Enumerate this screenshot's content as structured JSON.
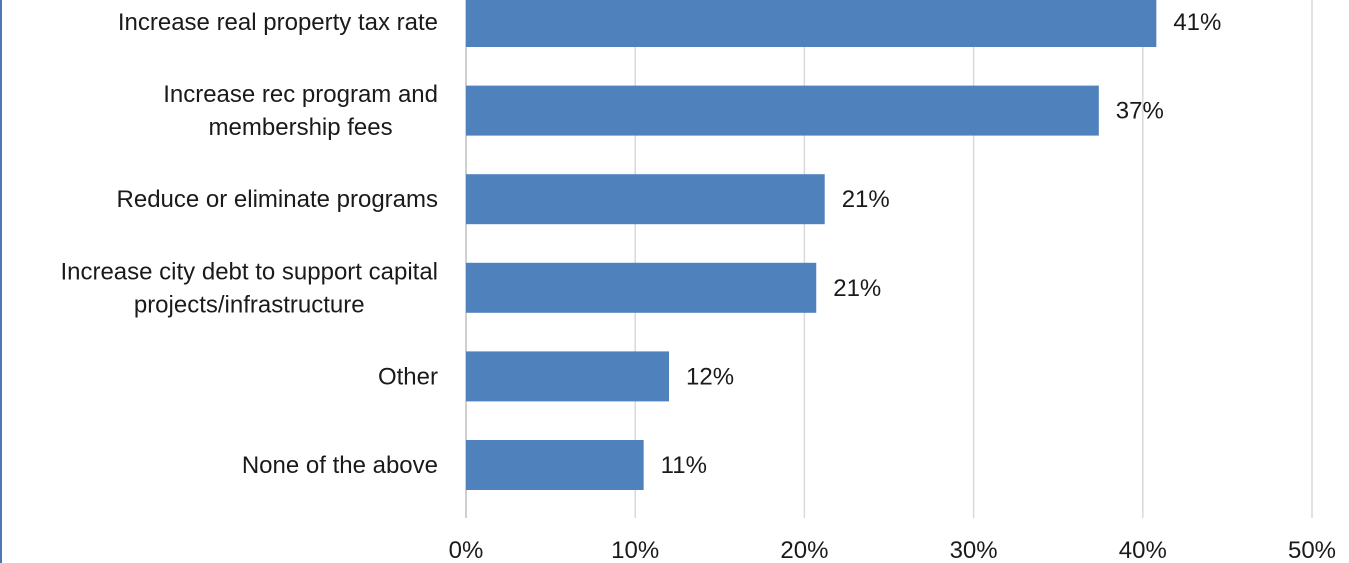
{
  "chart_data": {
    "type": "bar",
    "orientation": "horizontal",
    "categories": [
      [
        "Increase real property tax rate"
      ],
      [
        "Increase rec program and",
        "membership fees"
      ],
      [
        "Reduce or eliminate programs"
      ],
      [
        "Increase city debt to support capital",
        "projects/infrastructure"
      ],
      [
        "Other"
      ],
      [
        "None of the above"
      ]
    ],
    "values": [
      40.8,
      37.4,
      21.2,
      20.7,
      12.0,
      10.5
    ],
    "value_labels": [
      "41%",
      "37%",
      "21%",
      "21%",
      "12%",
      "11%"
    ],
    "xlim": [
      0,
      50
    ],
    "ticks": [
      0,
      10,
      20,
      30,
      40,
      50
    ],
    "tick_labels": [
      "0%",
      "10%",
      "20%",
      "30%",
      "40%",
      "50%"
    ],
    "grid": true,
    "title": "",
    "xlabel": "",
    "ylabel": "",
    "colors": {
      "bar": "#4f81bd",
      "grid": "#d9d9d9",
      "frame": "#4a78b5"
    }
  }
}
